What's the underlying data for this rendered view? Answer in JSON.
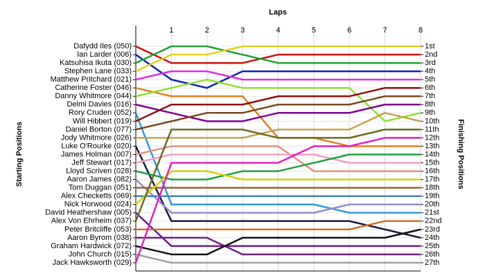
{
  "chart_data": {
    "type": "bump",
    "title": "Laps",
    "y_label": "Starting Positions",
    "y2_label": "Finishing Positions",
    "x": [
      0,
      1,
      2,
      3,
      4,
      5,
      6,
      7,
      8
    ],
    "xlim": [
      0,
      8
    ],
    "xticks": [
      1,
      2,
      3,
      4,
      5,
      6,
      7,
      8
    ],
    "ylim": [
      1,
      27
    ],
    "y_reversed": true,
    "grid": true,
    "y2ticks": [
      {
        "value": 1,
        "label": "1st"
      },
      {
        "value": 2,
        "label": "2nd"
      },
      {
        "value": 3,
        "label": "3rd"
      },
      {
        "value": 4,
        "label": "4th"
      },
      {
        "value": 5,
        "label": "5th"
      },
      {
        "value": 6,
        "label": "6th"
      },
      {
        "value": 7,
        "label": "7th"
      },
      {
        "value": 8,
        "label": "8th"
      },
      {
        "value": 9,
        "label": "9th"
      },
      {
        "value": 10,
        "label": "10th"
      },
      {
        "value": 11,
        "label": "11th"
      },
      {
        "value": 12,
        "label": "12th"
      },
      {
        "value": 13,
        "label": "13th"
      },
      {
        "value": 14,
        "label": "14th"
      },
      {
        "value": 15,
        "label": "15th"
      },
      {
        "value": 16,
        "label": "16th"
      },
      {
        "value": 17,
        "label": "17th"
      },
      {
        "value": 18,
        "label": "18th"
      },
      {
        "value": 19,
        "label": "19th"
      },
      {
        "value": 20,
        "label": "20th"
      },
      {
        "value": 21,
        "label": "21st"
      },
      {
        "value": 22,
        "label": "22nd"
      },
      {
        "value": 23,
        "label": "23rd"
      },
      {
        "value": 24,
        "label": "24th"
      },
      {
        "value": 25,
        "label": "25th"
      },
      {
        "value": 26,
        "label": "26th"
      },
      {
        "value": 27,
        "label": "27th"
      }
    ],
    "series": [
      {
        "name": "Dafydd Iles (050)",
        "color": "#cc1010",
        "values": [
          1,
          3,
          3,
          3,
          2,
          2,
          2,
          2,
          2
        ]
      },
      {
        "name": "Ian Larder (006)",
        "color": "#1020b0",
        "values": [
          2,
          5,
          6,
          4,
          4,
          4,
          4,
          4,
          4
        ]
      },
      {
        "name": "Katsuhisa Ikuta (030)",
        "color": "#22a030",
        "values": [
          3,
          1,
          1,
          2,
          3,
          3,
          3,
          3,
          3
        ]
      },
      {
        "name": "Stephen Lane (033)",
        "color": "#e0d020",
        "values": [
          4,
          2,
          2,
          1,
          1,
          1,
          1,
          1,
          1
        ]
      },
      {
        "name": "Matthew Pritchard (021)",
        "color": "#dd30dd",
        "values": [
          5,
          4,
          4,
          5,
          5,
          5,
          5,
          5,
          5
        ]
      },
      {
        "name": "Catherine Foster (046)",
        "color": "#e08020",
        "values": [
          6,
          7,
          7,
          7,
          12,
          12,
          13,
          13,
          13
        ]
      },
      {
        "name": "Danny Whitmore (044)",
        "color": "#90e030",
        "values": [
          7,
          6,
          5,
          6,
          6,
          6,
          6,
          10,
          9
        ]
      },
      {
        "name": "Delmi Davies (016)",
        "color": "#800090",
        "values": [
          8,
          9,
          10,
          10,
          9,
          9,
          9,
          8,
          8
        ]
      },
      {
        "name": "Rory Cruden (052)",
        "color": "#3399e0",
        "values": [
          9,
          20,
          20,
          20,
          20,
          20,
          21,
          21,
          21
        ]
      },
      {
        "name": "Will Hibbert (019)",
        "color": "#8b1010",
        "values": [
          10,
          8,
          8,
          8,
          7,
          7,
          7,
          6,
          6
        ]
      },
      {
        "name": "Daniel Borton (077)",
        "color": "#7a4a20",
        "values": [
          11,
          10,
          9,
          9,
          8,
          8,
          8,
          7,
          7
        ]
      },
      {
        "name": "Jody Whitmore (026)",
        "color": "#c8a050",
        "values": [
          12,
          12,
          12,
          12,
          11,
          11,
          11,
          9,
          10
        ]
      },
      {
        "name": "Luke O'Rourke (020)",
        "color": "#1a1a40",
        "values": [
          13,
          22,
          22,
          22,
          22,
          22,
          22,
          23,
          24
        ]
      },
      {
        "name": "James Holman (007)",
        "color": "#e89080",
        "values": [
          14,
          13,
          13,
          13,
          13,
          16,
          16,
          16,
          16
        ]
      },
      {
        "name": "Jeff Stewart (017)",
        "color": "#f0a0c0",
        "values": [
          15,
          14,
          14,
          14,
          14,
          14,
          15,
          15,
          15
        ]
      },
      {
        "name": "Lloyd Scriven (028)",
        "color": "#20a040",
        "values": [
          16,
          17,
          17,
          16,
          16,
          15,
          14,
          14,
          14
        ]
      },
      {
        "name": "Aaron James (082)",
        "color": "#9090c8",
        "values": [
          17,
          21,
          21,
          21,
          21,
          21,
          20,
          20,
          20
        ]
      },
      {
        "name": "Tom Duggan (051)",
        "color": "#a06030",
        "values": [
          18,
          18,
          18,
          18,
          18,
          18,
          18,
          18,
          18
        ]
      },
      {
        "name": "Alex Checketts (069)",
        "color": "#4682b4",
        "values": [
          19,
          19,
          19,
          19,
          19,
          19,
          19,
          19,
          19
        ]
      },
      {
        "name": "Nick Horwood (024)",
        "color": "#d8d000",
        "values": [
          20,
          16,
          16,
          17,
          17,
          17,
          17,
          17,
          17
        ]
      },
      {
        "name": "David Heathershaw (005)",
        "color": "#6a1aa0",
        "values": [
          21,
          25,
          25,
          25,
          25,
          25,
          25,
          25,
          25
        ]
      },
      {
        "name": "Alex Von Ehrheim (037)",
        "color": "#6b6b20",
        "values": [
          22,
          11,
          11,
          11,
          12,
          12,
          12,
          11,
          11
        ]
      },
      {
        "name": "Peter Britcliffe (053)",
        "color": "#d07020",
        "values": [
          23,
          23,
          23,
          23,
          23,
          23,
          23,
          22,
          22
        ]
      },
      {
        "name": "Aaron Byrom (038)",
        "color": "#702080",
        "values": [
          24,
          24,
          24,
          26,
          26,
          26,
          26,
          26,
          26
        ]
      },
      {
        "name": "Graham Hardwick (072)",
        "color": "#101010",
        "values": [
          25,
          26,
          26,
          24,
          24,
          24,
          24,
          24,
          23
        ]
      },
      {
        "name": "John Church (015)",
        "color": "#a0a0a0",
        "values": [
          26,
          27,
          27,
          27,
          27,
          27,
          27,
          27,
          27
        ]
      },
      {
        "name": "Jack Hawksworth (029)",
        "color": "#e020c0",
        "values": [
          27,
          15,
          15,
          15,
          15,
          13,
          13,
          12,
          12
        ]
      }
    ]
  }
}
